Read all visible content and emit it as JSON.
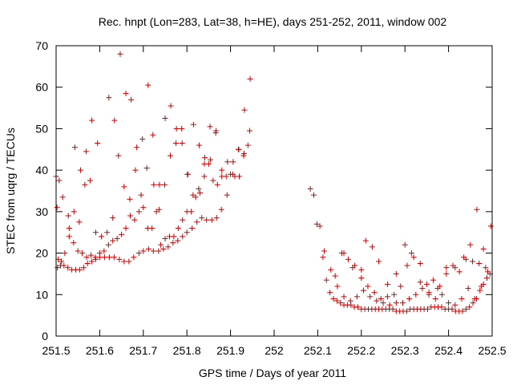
{
  "chart_data": {
    "type": "scatter",
    "title": "Rec. hnpt (Lon=283, Lat=38, h=HE), days 251-252, 2011, window 002",
    "xlabel": "GPS time / Days of year 2011",
    "ylabel": "STEC from uqrg / TECUs",
    "xlim": [
      251.5,
      252.5
    ],
    "ylim": [
      0,
      70
    ],
    "xticks": [
      251.5,
      251.6,
      251.7,
      251.8,
      251.9,
      252,
      252.1,
      252.2,
      252.3,
      252.4,
      252.5
    ],
    "xtick_labels": [
      "251.5",
      "251.6",
      "251.7",
      "251.8",
      "251.9",
      "252",
      "252.1",
      "252.2",
      "252.3",
      "252.4",
      "252.5"
    ],
    "yticks": [
      0,
      10,
      20,
      30,
      40,
      50,
      60,
      70
    ],
    "ytick_labels": [
      "0",
      "10",
      "20",
      "30",
      "40",
      "50",
      "60",
      "70"
    ],
    "marker": "plus",
    "color": "#cc0000",
    "grid": false,
    "legend": "none",
    "series": [
      {
        "x": [
          251.503,
          251.51,
          251.518,
          251.527,
          251.536,
          251.545,
          251.554,
          251.563,
          251.572,
          251.582,
          251.591,
          251.6,
          251.611,
          251.622,
          251.633,
          251.645,
          251.656,
          251.667,
          251.678,
          251.69,
          251.7,
          251.712,
          251.723,
          251.735,
          251.746,
          251.757,
          251.768,
          251.779,
          251.79,
          251.8,
          251.812,
          251.823,
          251.834,
          251.845,
          251.857,
          251.868
        ],
        "y": [
          16.5,
          17.0,
          17.0,
          16.5,
          16.0,
          16.0,
          16.0,
          16.5,
          17.5,
          18.0,
          18.5,
          19.0,
          19.0,
          19.0,
          19.0,
          18.5,
          18.0,
          18.0,
          19.0,
          20.0,
          20.5,
          21.0,
          20.5,
          20.5,
          21.0,
          21.5,
          22.5,
          23.0,
          24.0,
          25.0,
          26.0,
          27.5,
          28.5,
          28.0,
          28.0,
          28.5
        ]
      },
      {
        "x": [
          251.505,
          251.512,
          251.52,
          251.53,
          251.54,
          251.55,
          251.56,
          251.57,
          251.58,
          251.59,
          251.6,
          251.61,
          251.62,
          251.63,
          251.64,
          251.65,
          251.66,
          251.67,
          251.68,
          251.69,
          251.7,
          251.71,
          251.72,
          251.73,
          251.74,
          251.75,
          251.76,
          251.77,
          251.78,
          251.79,
          251.8,
          251.81,
          251.82,
          251.83,
          251.84,
          251.85,
          251.86,
          251.87,
          251.88,
          251.89,
          251.9,
          251.91,
          251.92,
          251.93,
          251.94
        ],
        "y": [
          18.5,
          18.0,
          20.0,
          24.0,
          22.5,
          20.5,
          20.0,
          19.0,
          19.5,
          19.0,
          20.0,
          20.5,
          22.0,
          23.0,
          23.5,
          24.5,
          26.0,
          29.0,
          28.0,
          30.0,
          31.0,
          26.0,
          26.0,
          30.0,
          22.0,
          23.5,
          24.0,
          24.0,
          26.0,
          28.0,
          30.0,
          30.0,
          33.5,
          34.5,
          38.5,
          41.5,
          37.5,
          36.5,
          38.5,
          38.5,
          39.0,
          38.5,
          38.5,
          43.5,
          46.0
        ]
      },
      {
        "x": [
          251.502,
          251.515,
          251.528,
          251.541,
          251.553,
          251.566,
          251.578,
          251.591,
          251.604,
          251.617,
          251.63,
          251.643,
          251.656,
          251.669,
          251.682,
          251.695,
          251.708,
          251.722,
          251.736,
          251.749,
          251.762,
          251.775,
          251.788,
          251.801,
          251.814,
          251.827,
          251.84,
          251.853,
          251.866,
          251.879,
          251.892,
          251.905,
          251.918,
          251.931,
          251.944
        ],
        "y": [
          31.0,
          33.5,
          29.0,
          30.0,
          27.5,
          36.5,
          37.5,
          25.0,
          24.0,
          25.0,
          28.5,
          43.5,
          36.0,
          33.0,
          40.0,
          34.0,
          40.5,
          48.5,
          30.5,
          36.5,
          43.5,
          46.5,
          50.0,
          39.0,
          34.0,
          35.5,
          41.5,
          50.5,
          49.0,
          30.5,
          34.0,
          39.0,
          45.0,
          44.0,
          49.5
        ]
      },
      {
        "x": [
          251.5,
          251.507,
          251.53,
          251.543,
          251.556,
          251.569,
          251.582,
          251.595,
          251.621,
          251.634,
          251.647,
          251.66,
          251.672,
          251.685,
          251.698,
          251.711,
          251.724,
          251.737,
          251.75,
          251.763,
          251.776,
          251.789,
          251.802,
          251.815,
          251.828,
          251.841,
          251.854,
          251.867,
          251.88,
          251.893,
          251.906,
          251.919,
          251.932,
          251.945
        ],
        "y": [
          38.5,
          37.5,
          26.0,
          45.5,
          40.0,
          44.5,
          52.0,
          46.5,
          57.5,
          52.0,
          68.0,
          58.5,
          57.0,
          45.5,
          47.5,
          60.5,
          36.5,
          36.5,
          52.5,
          55.5,
          50.0,
          46.5,
          39.0,
          51.0,
          46.0,
          43.0,
          42.5,
          49.5,
          40.0,
          42.0,
          42.0,
          45.0,
          54.5,
          62.0
        ]
      },
      {
        "x": [
          252.083,
          252.091,
          252.098,
          252.105,
          252.112,
          252.12,
          252.128,
          252.136,
          252.144,
          252.152,
          252.16,
          252.168,
          252.176,
          252.184,
          252.192,
          252.2,
          252.208,
          252.216,
          252.224,
          252.232,
          252.24,
          252.248,
          252.256,
          252.264,
          252.272,
          252.28,
          252.288,
          252.296,
          252.304,
          252.312,
          252.32,
          252.328,
          252.336,
          252.344,
          252.352,
          252.36,
          252.368,
          252.376,
          252.384,
          252.392,
          252.4,
          252.408,
          252.416,
          252.424,
          252.432,
          252.44,
          252.448,
          252.456,
          252.464,
          252.472,
          252.48,
          252.488,
          252.495
        ],
        "y": [
          35.5,
          34.0,
          27.0,
          26.5,
          19.0,
          13.5,
          10.5,
          9.0,
          8.5,
          8.0,
          7.5,
          7.5,
          7.5,
          7.0,
          7.0,
          6.5,
          6.5,
          6.5,
          6.5,
          6.5,
          6.5,
          6.5,
          6.5,
          6.5,
          6.5,
          6.0,
          6.0,
          6.0,
          6.0,
          6.5,
          6.5,
          6.5,
          6.5,
          6.5,
          6.5,
          7.0,
          7.0,
          7.0,
          7.0,
          6.5,
          6.5,
          6.5,
          6.0,
          6.0,
          6.0,
          6.5,
          7.0,
          8.0,
          9.0,
          11.0,
          12.5,
          14.0,
          15.0
        ]
      },
      {
        "x": [
          252.115,
          252.13,
          252.145,
          252.16,
          252.175,
          252.19,
          252.205,
          252.22,
          252.235,
          252.25,
          252.265,
          252.28,
          252.295,
          252.31,
          252.325,
          252.34,
          252.355,
          252.37,
          252.385,
          252.4,
          252.415,
          252.43,
          252.445,
          252.46,
          252.475,
          252.49
        ],
        "y": [
          20.5,
          16.0,
          12.0,
          9.5,
          8.5,
          9.5,
          11.0,
          9.5,
          8.5,
          8.0,
          7.5,
          8.0,
          8.0,
          9.0,
          10.0,
          11.5,
          10.0,
          9.0,
          10.0,
          8.0,
          7.5,
          9.0,
          11.5,
          9.0,
          12.0,
          15.5
        ]
      },
      {
        "x": [
          252.14,
          252.155,
          252.17,
          252.185,
          252.2,
          252.215,
          252.23,
          252.245,
          252.26,
          252.275,
          252.29,
          252.305,
          252.32,
          252.335,
          252.35,
          252.365,
          252.38,
          252.395,
          252.41,
          252.425,
          252.44,
          252.455,
          252.47,
          252.485
        ],
        "y": [
          14.5,
          20.0,
          18.5,
          17.0,
          14.0,
          12.0,
          10.5,
          9.0,
          9.5,
          10.0,
          12.0,
          17.0,
          19.0,
          13.0,
          12.5,
          13.5,
          12.0,
          15.0,
          17.0,
          15.5,
          18.5,
          18.0,
          17.5,
          16.5
        ]
      },
      {
        "x": [
          252.16,
          252.18,
          252.2,
          252.21,
          252.225,
          252.24,
          252.26,
          252.28,
          252.3,
          252.315,
          252.335,
          252.355,
          252.375,
          252.395,
          252.415,
          252.435,
          252.45,
          252.465,
          252.48,
          252.497
        ],
        "y": [
          20.0,
          16.5,
          16.0,
          23.0,
          21.5,
          18.0,
          12.5,
          15.0,
          22.0,
          20.0,
          17.5,
          10.5,
          11.5,
          16.5,
          16.5,
          19.0,
          22.0,
          30.5,
          21.0,
          26.5
        ]
      }
    ]
  }
}
